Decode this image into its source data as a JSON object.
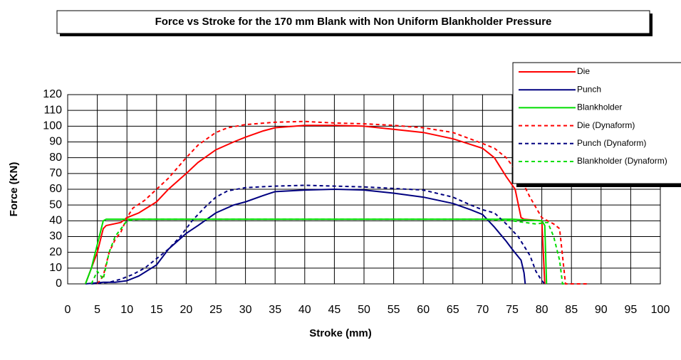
{
  "chart_data": {
    "type": "line",
    "title": "Force vs Stroke for the 170 mm Blank with Non Uniform Blankholder Pressure",
    "x_label": "Stroke (mm)",
    "y_label": "Force (KN)",
    "xlim": [
      0,
      100
    ],
    "ylim": [
      0,
      120
    ],
    "xticks": [
      0,
      5,
      10,
      15,
      20,
      25,
      30,
      35,
      40,
      45,
      50,
      55,
      60,
      65,
      70,
      75,
      80,
      85,
      90,
      95,
      100
    ],
    "yticks": [
      0,
      10,
      20,
      30,
      40,
      50,
      60,
      70,
      80,
      90,
      100,
      110,
      120
    ],
    "grid": true,
    "legend": "top-right",
    "series": [
      {
        "name": "Die",
        "color": "#ff0000",
        "dash": false,
        "x": [
          3,
          4,
          5,
          6,
          6.5,
          9,
          10,
          12,
          15,
          17,
          20,
          22,
          25,
          28,
          30,
          33,
          35,
          40,
          45,
          50,
          55,
          60,
          65,
          70,
          72,
          74,
          75.5,
          76.5,
          77,
          80,
          80.5
        ],
        "values": [
          0,
          10,
          20,
          35,
          37,
          39,
          42,
          45,
          52,
          60,
          70,
          77,
          85,
          90,
          93,
          97,
          99,
          100.5,
          100.5,
          100,
          98,
          96,
          92,
          86,
          80,
          68,
          60,
          42,
          41,
          40,
          0
        ]
      },
      {
        "name": "Punch",
        "color": "#000080",
        "dash": false,
        "x": [
          3,
          6,
          8,
          10,
          12,
          15,
          17,
          20,
          22,
          25,
          28,
          30,
          33,
          35,
          40,
          45,
          50,
          55,
          60,
          65,
          68,
          70,
          72,
          74,
          75,
          76.5,
          77,
          77.2
        ],
        "values": [
          0,
          1,
          1,
          2,
          5,
          12,
          22,
          32,
          37,
          45,
          50,
          52,
          56,
          58.5,
          59.5,
          60,
          59.5,
          57.5,
          55,
          51,
          47,
          44,
          36,
          27,
          22,
          15,
          7,
          0
        ]
      },
      {
        "name": "Blankholder",
        "color": "#00dd00",
        "dash": false,
        "x": [
          3,
          4,
          5,
          6,
          6.5,
          75,
          80,
          80.5,
          80.8
        ],
        "values": [
          0,
          10,
          25,
          40,
          41,
          41,
          40,
          37,
          0
        ]
      },
      {
        "name": "Die (Dynaform)",
        "color": "#ff0000",
        "dash": true,
        "x": [
          5,
          6,
          7,
          8,
          9,
          10,
          11,
          13,
          15,
          17,
          20,
          22,
          25,
          27,
          30,
          35,
          40,
          45,
          50,
          55,
          60,
          65,
          70,
          72,
          74,
          76,
          78,
          80,
          82,
          83,
          84,
          88
        ],
        "values": [
          0,
          5,
          20,
          28,
          33,
          42,
          48,
          53,
          60,
          67,
          80,
          88,
          96,
          99,
          101,
          102.5,
          103,
          102,
          101.5,
          100.5,
          99,
          96,
          89,
          86,
          80,
          70,
          55,
          42,
          38,
          35,
          0,
          0
        ]
      },
      {
        "name": "Punch (Dynaform)",
        "color": "#000080",
        "dash": true,
        "x": [
          4,
          7,
          9,
          11,
          13,
          15,
          17,
          19,
          21,
          23,
          25,
          27,
          30,
          35,
          40,
          45,
          50,
          55,
          60,
          65,
          68,
          70,
          72,
          74,
          76,
          78,
          79,
          80,
          80.5
        ],
        "values": [
          0,
          1,
          3,
          6,
          10,
          16,
          22,
          30,
          40,
          48,
          55,
          59,
          61,
          62,
          62.5,
          62,
          61.5,
          60.5,
          59.5,
          55,
          50,
          47,
          45,
          38,
          30,
          18,
          8,
          2,
          0
        ]
      },
      {
        "name": "Blankholder (Dynaform)",
        "color": "#00dd00",
        "dash": true,
        "x": [
          4,
          5,
          6,
          7,
          8,
          9,
          10,
          12,
          70,
          75,
          79,
          81,
          82,
          83,
          83.5,
          84
        ],
        "values": [
          0,
          8,
          3,
          20,
          30,
          35,
          40,
          41,
          41,
          40,
          38,
          39,
          30,
          15,
          0,
          0
        ]
      }
    ]
  }
}
